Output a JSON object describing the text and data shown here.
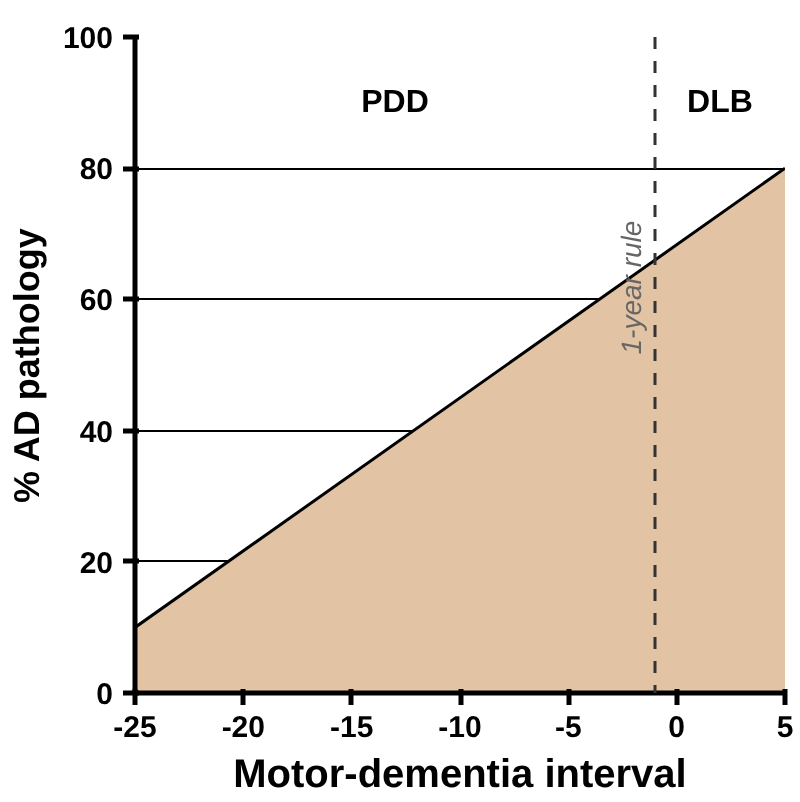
{
  "chart_data": {
    "type": "area",
    "xlabel": "Motor-dementia interval",
    "ylabel": "% AD pathology",
    "x": [
      -25,
      5
    ],
    "series": [
      {
        "color": "#e2c3a4",
        "values": [
          10,
          80
        ]
      }
    ],
    "xlim": [
      -25,
      5
    ],
    "ylim": [
      0,
      100
    ],
    "xticks": [
      -25,
      -20,
      -15,
      -10,
      -5,
      0,
      5
    ],
    "yticks": [
      0,
      20,
      40,
      60,
      80,
      100
    ],
    "grid": "y",
    "ref_lines": [
      {
        "axis": "x",
        "value": -1,
        "label": "1-year rule",
        "line_style": "dashed",
        "color": "#333333"
      }
    ],
    "annotations": [
      "PDD",
      "DLB"
    ]
  }
}
